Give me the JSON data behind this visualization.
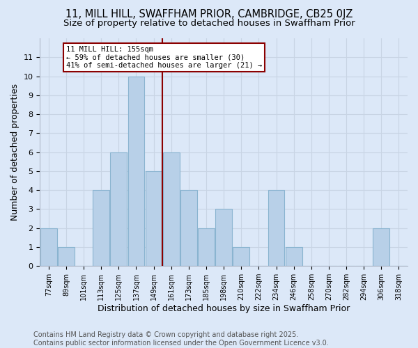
{
  "title": "11, MILL HILL, SWAFFHAM PRIOR, CAMBRIDGE, CB25 0JZ",
  "subtitle": "Size of property relative to detached houses in Swaffham Prior",
  "xlabel": "Distribution of detached houses by size in Swaffham Prior",
  "ylabel": "Number of detached properties",
  "categories": [
    "77sqm",
    "89sqm",
    "101sqm",
    "113sqm",
    "125sqm",
    "137sqm",
    "149sqm",
    "161sqm",
    "173sqm",
    "185sqm",
    "198sqm",
    "210sqm",
    "222sqm",
    "234sqm",
    "246sqm",
    "258sqm",
    "270sqm",
    "282sqm",
    "294sqm",
    "306sqm",
    "318sqm"
  ],
  "values": [
    2,
    1,
    0,
    4,
    6,
    10,
    5,
    6,
    4,
    2,
    3,
    1,
    0,
    4,
    1,
    0,
    0,
    0,
    0,
    2,
    0
  ],
  "bar_color": "#b8d0e8",
  "bar_edge_color": "#8ab4d0",
  "grid_color": "#c8d4e4",
  "background_color": "#dce8f8",
  "vline_color": "#8b0000",
  "annotation_title": "11 MILL HILL: 155sqm",
  "annotation_line1": "← 59% of detached houses are smaller (30)",
  "annotation_line2": "41% of semi-detached houses are larger (21) →",
  "ylim": [
    0,
    12
  ],
  "yticks": [
    0,
    1,
    2,
    3,
    4,
    5,
    6,
    7,
    8,
    9,
    10,
    11
  ],
  "footer": "Contains HM Land Registry data © Crown copyright and database right 2025.\nContains public sector information licensed under the Open Government Licence v3.0.",
  "title_fontsize": 10.5,
  "subtitle_fontsize": 9.5,
  "xlabel_fontsize": 9,
  "ylabel_fontsize": 9,
  "footer_fontsize": 7,
  "vline_index": 6.5
}
